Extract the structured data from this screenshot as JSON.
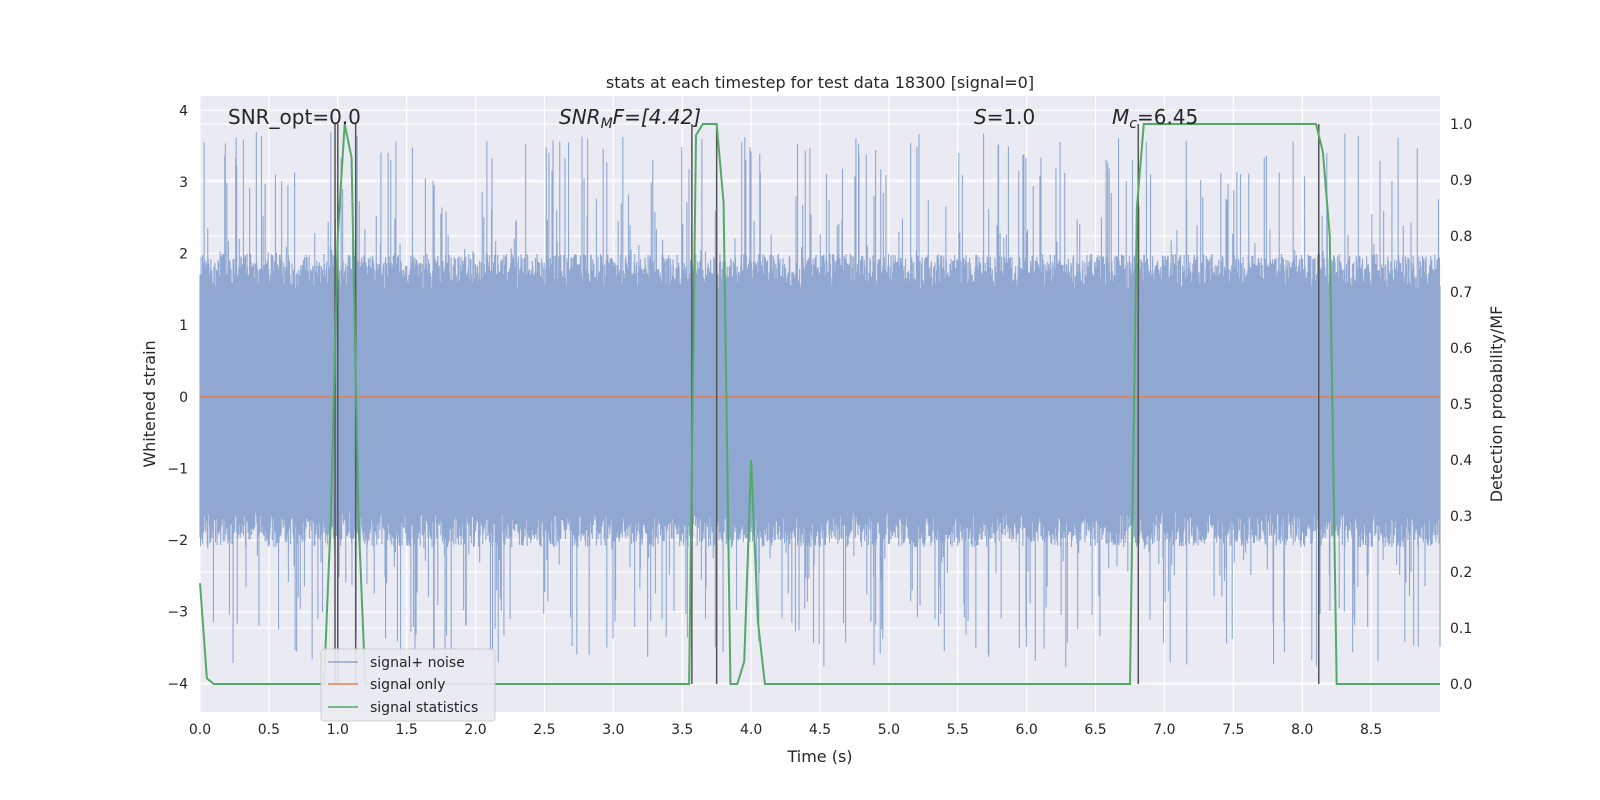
{
  "chart_data": {
    "type": "line",
    "title": "stats at each timestep for test data 18300 [signal=0]",
    "xlabel": "Time (s)",
    "ylabel": "Whitened strain",
    "ylabel_right": "Detection probability/MF",
    "xlim": [
      0.0,
      9.0
    ],
    "ylim": [
      -4.4,
      4.2
    ],
    "ylim_right": [
      -0.05,
      1.05
    ],
    "xticks": [
      "0.0",
      "0.5",
      "1.0",
      "1.5",
      "2.0",
      "2.5",
      "3.0",
      "3.5",
      "4.0",
      "4.5",
      "5.0",
      "5.5",
      "6.0",
      "6.5",
      "7.0",
      "7.5",
      "8.0",
      "8.5"
    ],
    "yticks": [
      "4",
      "3",
      "2",
      "1",
      "0",
      "−1",
      "−2",
      "−3",
      "−4"
    ],
    "yticks_right": [
      "1.0",
      "0.9",
      "0.8",
      "0.7",
      "0.6",
      "0.5",
      "0.4",
      "0.3",
      "0.2",
      "0.1",
      "0.0"
    ],
    "grid": true,
    "legend_position": "lower-left",
    "annotations": {
      "snr_opt": "SNR_opt=0.0",
      "snr_mf_main": "SNR",
      "snr_mf_sub": "M",
      "snr_mf_rest": "F=[4.42]",
      "s_main": "S",
      "s_rest": "=1.0",
      "mc_main": "M",
      "mc_sub": "c",
      "mc_rest": "=6.45"
    },
    "series": [
      {
        "name": "signal+ noise",
        "color": "#8fa7d1",
        "description_values": "whitened strain noise, roughly uniform band between -1.6 and 1.5 with spikes up to 3.7 and down to -4.0",
        "t_start": 0.0,
        "t_end": 9.0,
        "band_low": -1.6,
        "band_high": 1.5
      },
      {
        "name": "signal only",
        "color": "#dd8452",
        "x": [
          0.0,
          9.0
        ],
        "y": [
          0.0,
          0.0
        ]
      },
      {
        "name": "signal statistics",
        "color": "#55a868",
        "x": [
          0.0,
          0.05,
          0.1,
          0.5,
          0.9,
          0.95,
          1.0,
          1.05,
          1.1,
          1.15,
          1.2,
          1.5,
          2.0,
          3.0,
          3.5,
          3.55,
          3.6,
          3.65,
          3.7,
          3.75,
          3.8,
          3.85,
          3.9,
          3.95,
          4.0,
          4.05,
          4.1,
          4.15,
          4.2,
          5.0,
          6.0,
          6.75,
          6.8,
          6.85,
          6.9,
          7.0,
          8.0,
          8.1,
          8.15,
          8.2,
          8.25,
          8.3,
          8.5,
          9.0
        ],
        "y": [
          0.18,
          0.01,
          0.0,
          0.0,
          0.0,
          0.3,
          0.8,
          1.0,
          0.94,
          0.3,
          0.0,
          0.0,
          0.0,
          0.0,
          0.0,
          0.0,
          0.98,
          1.0,
          1.0,
          1.0,
          0.86,
          0.0,
          0.0,
          0.04,
          0.4,
          0.11,
          0.0,
          0.0,
          0.0,
          0.0,
          0.0,
          0.0,
          0.85,
          1.0,
          1.0,
          1.0,
          1.0,
          1.0,
          0.95,
          0.8,
          0.0,
          0.0,
          0.0,
          0.0
        ]
      }
    ],
    "vertical_markers_x": [
      0.98,
      1.0,
      1.13,
      3.57,
      3.75,
      6.81,
      8.12
    ]
  }
}
